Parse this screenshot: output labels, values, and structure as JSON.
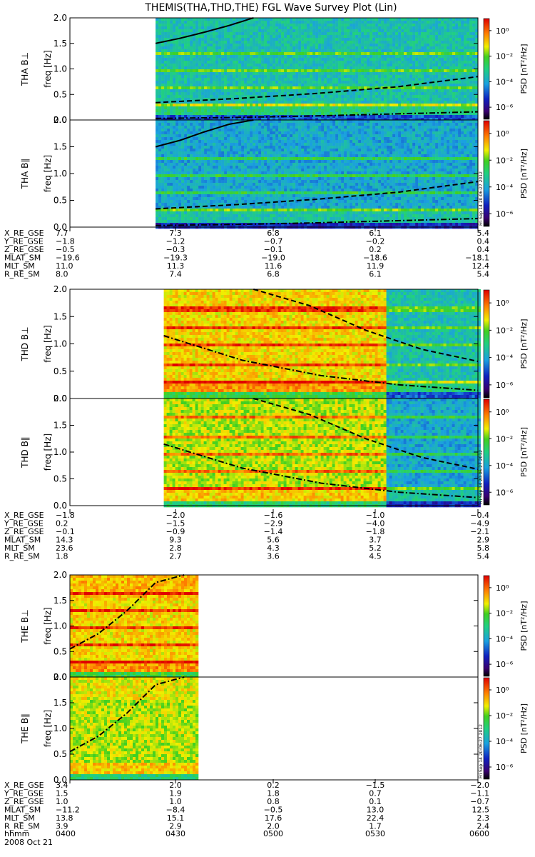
{
  "title": "THEMIS(THA,THD,THE) FGL Wave Survey Plot (Lin)",
  "freq_ticks": [
    "0.0",
    "0.5",
    "1.0",
    "1.5",
    "2.0"
  ],
  "colorbar": {
    "label": "PSD [nT²/Hz]",
    "ticks": [
      "10⁰",
      "10⁻²",
      "10⁻⁴",
      "10⁻⁶"
    ]
  },
  "stamp": "Fri Sep 14 20:06:27 2012",
  "chart_data": {
    "type": "heatmap",
    "xlabel": "hhmm",
    "x_ticks": [
      "0400",
      "0430",
      "0500",
      "0530",
      "0600"
    ],
    "date": "2008 Oct 21",
    "ylim": [
      0,
      2.0
    ],
    "ylabel_unit": "freq [Hz]",
    "color_scale": "log",
    "color_range": [
      1e-07,
      10.0
    ],
    "panels": [
      {
        "name": "THA B⊥",
        "probe": "THA",
        "data_start": 0.42,
        "data_end": 2.0,
        "base": -3.5,
        "lines": [
          {
            "style": "solid",
            "values": [
              1.5,
              1.6,
              1.72,
              1.85,
              2.0
            ],
            "end": 0.9
          },
          {
            "style": "dashed",
            "values": [
              0.34,
              0.42,
              0.52,
              0.65,
              0.85
            ]
          },
          {
            "style": "dashdot",
            "values": [
              0.03,
              0.05,
              0.08,
              0.12,
              0.16
            ]
          }
        ],
        "harmonics": [
          0.33,
          0.66,
          1.0,
          1.33
        ]
      },
      {
        "name": "THA B∥",
        "probe": "THA",
        "data_start": 0.42,
        "data_end": 2.0,
        "base": -4.0,
        "lines": [
          {
            "style": "solid",
            "values": [
              1.5,
              1.62,
              1.78,
              1.92,
              2.0
            ],
            "end": 0.9
          },
          {
            "style": "dashed",
            "values": [
              0.34,
              0.42,
              0.52,
              0.65,
              0.85
            ]
          },
          {
            "style": "dashdot",
            "values": [
              0.03,
              0.05,
              0.08,
              0.12,
              0.16
            ]
          }
        ],
        "harmonics": [
          0.33,
          0.66,
          1.0,
          1.33
        ]
      },
      {
        "name": "THD B⊥",
        "probe": "THD",
        "data_start": 0.46,
        "data_end": 2.0,
        "base": -1.0,
        "change_at": 1.54,
        "base_after": -3.5,
        "lines": [
          {
            "style": "dashed",
            "values": [
              2.0,
              1.7,
              1.25,
              0.9,
              0.68
            ],
            "start": 0.9
          },
          {
            "style": "dashdot",
            "values": [
              1.15,
              0.7,
              0.42,
              0.25,
              0.15
            ]
          }
        ],
        "harmonics": [
          0.33,
          0.66,
          1.0,
          1.33,
          1.66
        ]
      },
      {
        "name": "THD B∥",
        "probe": "THD",
        "data_start": 0.46,
        "data_end": 2.0,
        "base": -1.5,
        "change_at": 1.54,
        "base_after": -4.0,
        "lines": [
          {
            "style": "dashed",
            "values": [
              2.0,
              1.7,
              1.25,
              0.9,
              0.68
            ],
            "start": 0.9
          },
          {
            "style": "dashdot",
            "values": [
              1.15,
              0.7,
              0.42,
              0.25,
              0.15
            ]
          }
        ],
        "harmonics": [
          0.33,
          0.66,
          1.0,
          1.33,
          1.66
        ]
      },
      {
        "name": "THE B⊥",
        "probe": "THE",
        "data_start": 0.0,
        "data_end": 0.62,
        "base": -1.0,
        "lines": [
          {
            "style": "dashdot",
            "values": [
              0.55,
              0.85,
              1.3,
              1.85,
              2.0
            ],
            "end": 0.56
          }
        ],
        "harmonics": [
          0.33,
          0.66,
          1.0,
          1.33,
          1.66
        ]
      },
      {
        "name": "THE B∥",
        "probe": "THE",
        "data_start": 0.0,
        "data_end": 0.62,
        "base": -1.5,
        "lines": [
          {
            "style": "dashdot",
            "values": [
              0.55,
              0.85,
              1.3,
              1.85,
              2.0
            ],
            "end": 0.56
          }
        ],
        "harmonics": []
      }
    ],
    "ephemeris": [
      {
        "labels": [
          "X_RE_GSE",
          "Y_RE_GSE",
          "Z_RE_GSE",
          "MLAT_SM",
          "MLT_SM",
          "R_RE_SM"
        ],
        "rows": [
          [
            "7.7",
            "7.3",
            "6.8",
            "6.1",
            "5.4"
          ],
          [
            "−1.8",
            "−1.2",
            "−0.7",
            "−0.2",
            "0.4"
          ],
          [
            "−0.5",
            "−0.3",
            "−0.1",
            "0.2",
            "0.4"
          ],
          [
            "−19.6",
            "−19.3",
            "−19.0",
            "−18.6",
            "−18.1"
          ],
          [
            "11.0",
            "11.3",
            "11.6",
            "11.9",
            "12.4"
          ],
          [
            "8.0",
            "7.4",
            "6.8",
            "6.1",
            "5.4"
          ]
        ]
      },
      {
        "labels": [
          "X_RE_GSE",
          "Y_RE_GSE",
          "Z_RE_GSE",
          "MLAT_SM",
          "MLT_SM",
          "R_RE_SM"
        ],
        "rows": [
          [
            "−1.8",
            "−2.0",
            "−1.6",
            "−1.0",
            "−0.4"
          ],
          [
            "0.2",
            "−1.5",
            "−2.9",
            "−4.0",
            "−4.9"
          ],
          [
            "−0.1",
            "−0.9",
            "−1.4",
            "−1.8",
            "−2.1"
          ],
          [
            "14.3",
            "9.3",
            "5.6",
            "3.7",
            "2.9"
          ],
          [
            "23.6",
            "2.8",
            "4.3",
            "5.2",
            "5.8"
          ],
          [
            "1.8",
            "2.7",
            "3.6",
            "4.5",
            "5.4"
          ]
        ]
      },
      {
        "labels": [
          "X_RE_GSE",
          "Y_RE_GSE",
          "Z_RE_GSE",
          "MLAT_SM",
          "MLT_SM",
          "R_RE_SM"
        ],
        "rows": [
          [
            "3.4",
            "2.0",
            "0.2",
            "−1.5",
            "−2.0"
          ],
          [
            "1.5",
            "1.9",
            "1.8",
            "0.7",
            "−1.1"
          ],
          [
            "1.0",
            "1.0",
            "0.8",
            "0.1",
            "−0.7"
          ],
          [
            "−11.2",
            "−8.4",
            "−0.5",
            "13.0",
            "12.5"
          ],
          [
            "13.8",
            "15.1",
            "17.6",
            "22.4",
            "2.3"
          ],
          [
            "3.9",
            "2.9",
            "2.0",
            "1.7",
            "2.4"
          ]
        ]
      }
    ]
  }
}
